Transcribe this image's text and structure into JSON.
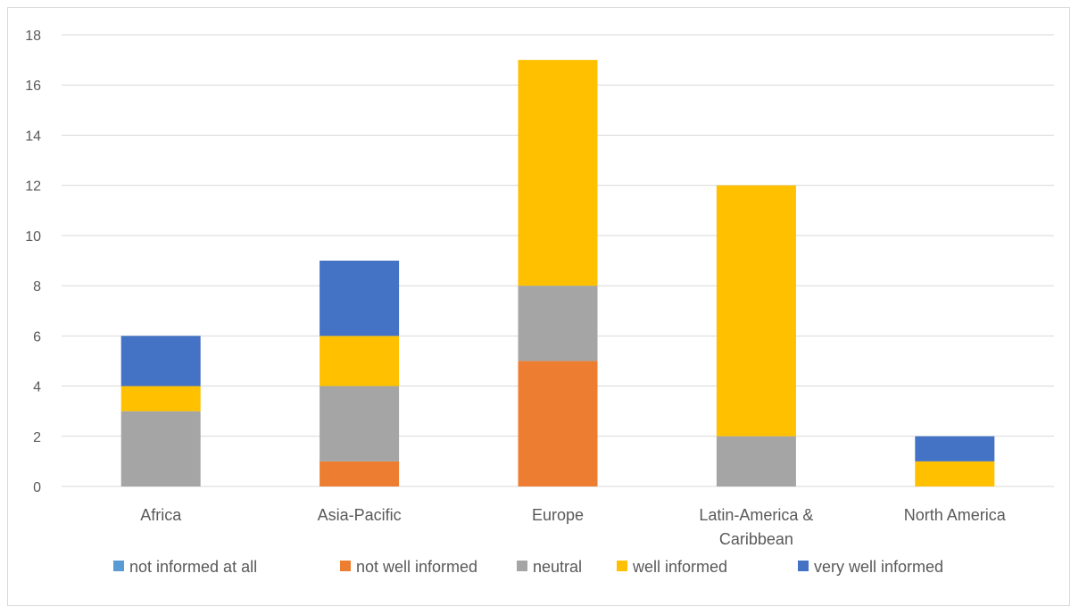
{
  "chart_data": {
    "type": "bar",
    "stacked": true,
    "categories": [
      "Africa",
      "Asia-Pacific",
      "Europe",
      "Latin-America & Caribbean",
      "North America"
    ],
    "series": [
      {
        "name": "not informed at all",
        "color": "#5B9BD5",
        "values": [
          0,
          0,
          0,
          0,
          0
        ]
      },
      {
        "name": "not well informed",
        "color": "#ED7D31",
        "values": [
          0,
          1,
          5,
          0,
          0
        ]
      },
      {
        "name": "neutral",
        "color": "#A5A5A5",
        "values": [
          3,
          3,
          3,
          2,
          0
        ]
      },
      {
        "name": "well informed",
        "color": "#FFC000",
        "values": [
          1,
          2,
          9,
          10,
          1
        ]
      },
      {
        "name": "very well informed",
        "color": "#4472C4",
        "values": [
          2,
          3,
          0,
          0,
          1
        ]
      }
    ],
    "ylim": [
      0,
      18
    ],
    "yticks": [
      0,
      2,
      4,
      6,
      8,
      10,
      12,
      14,
      16,
      18
    ],
    "grid": true,
    "legend": "bottom",
    "gridline_color": "#d9d9d9",
    "text_color": "#595959"
  }
}
